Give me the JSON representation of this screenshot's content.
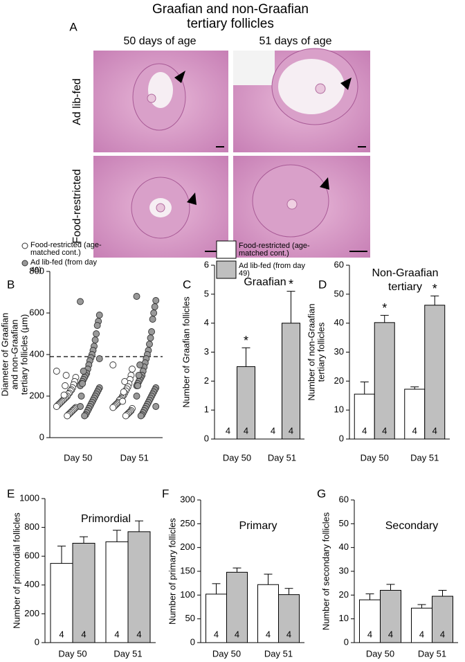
{
  "figure": {
    "title": [
      "Graafian and non-Graafian",
      "tertiary follicles"
    ],
    "panel": "A",
    "columns": [
      "50 days of age",
      "51 days of age"
    ],
    "rows": [
      "Ad lib-fed",
      "Food-restricted"
    ]
  },
  "chart_data": [
    {
      "type": "scatter",
      "panel": "B",
      "ylabel": [
        "Diameter of Graafian",
        "and non-Graafian",
        "tertiary follicles (µm)"
      ],
      "categories": [
        "Day 50",
        "Day 51"
      ],
      "ylim": [
        0,
        800
      ],
      "yticks": [
        0,
        200,
        400,
        600,
        800
      ],
      "hline": 390,
      "series": [
        {
          "name": "Food-restricted (age-matched cont.)",
          "color": "#ffffff",
          "values": [
            [
              320,
              290,
              270,
              255,
              240,
              230,
              225,
              215,
              210,
              200,
              195,
              190,
              185,
              180,
              175,
              170,
              165,
              160,
              155,
              150,
              145,
              140,
              135,
              130,
              125,
              120,
              115,
              110,
              105,
              300,
              250,
              205
            ],
            [
              350,
              330,
              300,
              280,
              260,
              245,
              235,
              225,
              215,
              205,
              200,
              190,
              185,
              180,
              170,
              165,
              160,
              155,
              150,
              145,
              140,
              130,
              125,
              120,
              115,
              110,
              105,
              270,
              220,
              175
            ]
          ]
        },
        {
          "name": "Ad lib-fed (from day 49)",
          "color": "#999999",
          "values": [
            [
              655,
              590,
              560,
              540,
              500,
              470,
              440,
              420,
              400,
              385,
              370,
              350,
              330,
              310,
              300,
              290,
              280,
              270,
              260,
              250,
              240,
              230,
              220,
              210,
              200,
              190,
              180,
              170,
              160,
              150,
              140,
              130,
              120,
              110,
              105,
              320,
              260,
              200,
              150,
              380
            ],
            [
              680,
              660,
              630,
              600,
              570,
              510,
              480,
              450,
              420,
              400,
              380,
              360,
              340,
              320,
              300,
              290,
              280,
              270,
              260,
              250,
              240,
              230,
              220,
              210,
              200,
              190,
              180,
              170,
              160,
              150,
              140,
              130,
              120,
              110,
              105,
              350,
              300,
              250,
              200,
              150
            ]
          ]
        }
      ]
    },
    {
      "type": "bar",
      "panel": "C",
      "title": [
        "Graafian"
      ],
      "ylabel": [
        "Number of Graafian follicles"
      ],
      "categories": [
        "Day 50",
        "Day 51"
      ],
      "ylim": [
        0,
        6
      ],
      "yticks": [
        0,
        1,
        2,
        3,
        4,
        5,
        6
      ],
      "series": [
        {
          "name": "Food-restricted (age-matched cont.)",
          "color": "#ffffff",
          "values": [
            0,
            0
          ],
          "errors": [
            0,
            0
          ],
          "n": [
            4,
            4
          ]
        },
        {
          "name": "Ad lib-fed (from day 49)",
          "color": "#bfbfbf",
          "values": [
            2.5,
            4.0
          ],
          "errors": [
            0.65,
            1.1
          ],
          "n": [
            4,
            4
          ],
          "annotations": [
            "*",
            "*"
          ]
        }
      ]
    },
    {
      "type": "bar",
      "panel": "D",
      "title": [
        "Non-Graafian",
        "tertiary"
      ],
      "ylabel": [
        "Number of non-Graafian",
        "tertiary follicles"
      ],
      "categories": [
        "Day 50",
        "Day 51"
      ],
      "ylim": [
        0,
        60
      ],
      "yticks": [
        0,
        10,
        20,
        30,
        40,
        50,
        60
      ],
      "series": [
        {
          "name": "Food-restricted (age-matched cont.)",
          "color": "#ffffff",
          "values": [
            15.5,
            17.2
          ],
          "errors": [
            4.2,
            0.8
          ],
          "n": [
            4,
            4
          ]
        },
        {
          "name": "Ad lib-fed (from day 49)",
          "color": "#bfbfbf",
          "values": [
            40.2,
            46.2
          ],
          "errors": [
            2.5,
            3.2
          ],
          "n": [
            4,
            4
          ],
          "annotations": [
            "*",
            "*"
          ]
        }
      ]
    },
    {
      "type": "bar",
      "panel": "E",
      "title": [
        "Primordial"
      ],
      "ylabel": [
        "Number of primordial follicles"
      ],
      "categories": [
        "Day 50",
        "Day 51"
      ],
      "ylim": [
        0,
        1000
      ],
      "yticks": [
        0,
        200,
        400,
        600,
        800,
        1000
      ],
      "series": [
        {
          "name": "Food-restricted (age-matched cont.)",
          "color": "#ffffff",
          "values": [
            550,
            700
          ],
          "errors": [
            120,
            80
          ],
          "n": [
            4,
            4
          ]
        },
        {
          "name": "Ad lib-fed (from day 49)",
          "color": "#bfbfbf",
          "values": [
            690,
            770
          ],
          "errors": [
            45,
            75
          ],
          "n": [
            4,
            4
          ]
        }
      ]
    },
    {
      "type": "bar",
      "panel": "F",
      "title": [
        "Primary"
      ],
      "ylabel": [
        "Number of primary follicles"
      ],
      "categories": [
        "Day 50",
        "Day 51"
      ],
      "ylim": [
        0,
        300
      ],
      "yticks": [
        0,
        50,
        100,
        150,
        200,
        250,
        300
      ],
      "series": [
        {
          "name": "Food-restricted (age-matched cont.)",
          "color": "#ffffff",
          "values": [
            102,
            122
          ],
          "errors": [
            22,
            22
          ],
          "n": [
            4,
            4
          ]
        },
        {
          "name": "Ad lib-fed (from day 49)",
          "color": "#bfbfbf",
          "values": [
            148,
            101
          ],
          "errors": [
            9,
            13
          ],
          "n": [
            4,
            4
          ]
        }
      ]
    },
    {
      "type": "bar",
      "panel": "G",
      "title": [
        "Secondary"
      ],
      "ylabel": [
        "Number of secondary follicles"
      ],
      "categories": [
        "Day 50",
        "Day 51"
      ],
      "ylim": [
        0,
        60
      ],
      "yticks": [
        0,
        10,
        20,
        30,
        40,
        50,
        60
      ],
      "series": [
        {
          "name": "Food-restricted (age-matched cont.)",
          "color": "#ffffff",
          "values": [
            18,
            14.5
          ],
          "errors": [
            2.5,
            1.5
          ],
          "n": [
            4,
            4
          ]
        },
        {
          "name": "Ad lib-fed (from day 49)",
          "color": "#bfbfbf",
          "values": [
            22,
            19.5
          ],
          "errors": [
            2.5,
            2.5
          ],
          "n": [
            4,
            4
          ]
        }
      ]
    }
  ]
}
